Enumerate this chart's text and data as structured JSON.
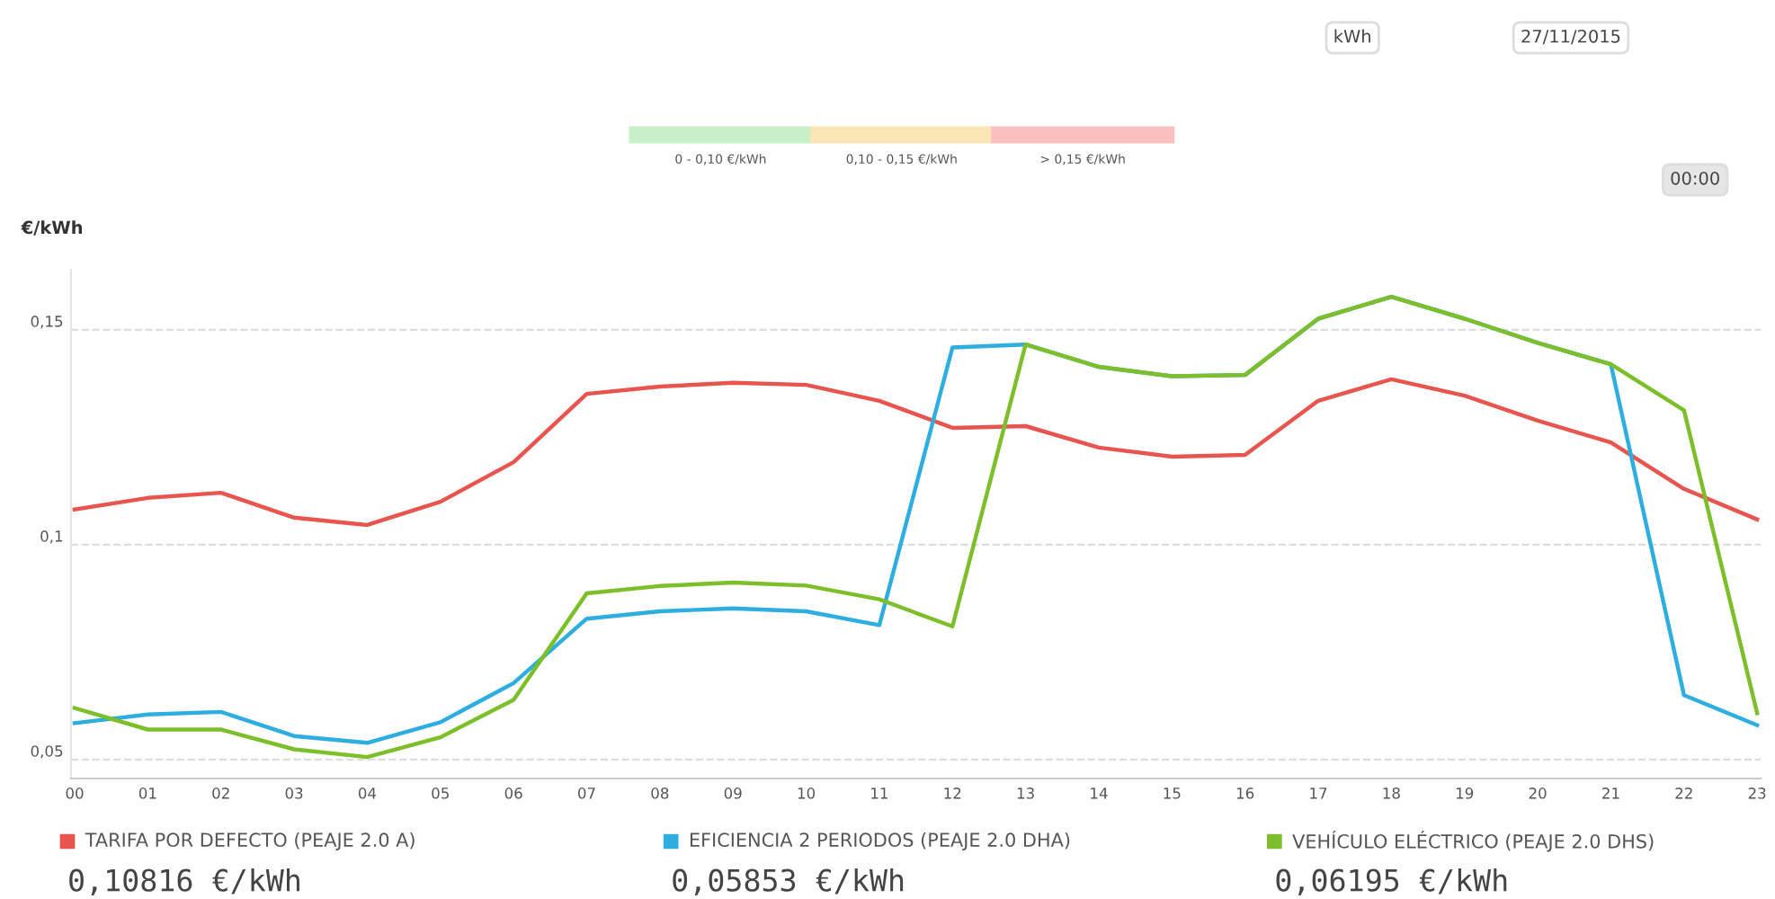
{
  "chart_data": {
    "type": "line",
    "ylabel": "€/kWh",
    "categories": [
      "00",
      "01",
      "02",
      "03",
      "04",
      "05",
      "06",
      "07",
      "08",
      "09",
      "10",
      "11",
      "12",
      "13",
      "14",
      "15",
      "16",
      "17",
      "18",
      "19",
      "20",
      "21",
      "22",
      "23"
    ],
    "series": [
      {
        "name": "TARIFA POR DEFECTO (PEAJE 2.0 A)",
        "color": "#e8554e",
        "values": [
          0.1082,
          0.1109,
          0.1121,
          0.1063,
          0.1046,
          0.11,
          0.1192,
          0.1351,
          0.1368,
          0.1377,
          0.1372,
          0.1335,
          0.1272,
          0.1276,
          0.1226,
          0.1205,
          0.1209,
          0.1335,
          0.1385,
          0.1347,
          0.1289,
          0.1238,
          0.113,
          0.1059
        ]
      },
      {
        "name": "EFICIENCIA 2 PERIODOS (PEAJE 2.0 DHA)",
        "color": "#2eaee0",
        "values": [
          0.0585,
          0.0605,
          0.0611,
          0.0555,
          0.0539,
          0.0587,
          0.0678,
          0.0828,
          0.0845,
          0.0852,
          0.0845,
          0.0813,
          0.1459,
          0.1466,
          0.1414,
          0.1392,
          0.1395,
          0.1526,
          0.1577,
          0.1526,
          0.147,
          0.142,
          0.065,
          0.058
        ]
      },
      {
        "name": "VEHÍCULO ELÉCTRICO (PEAJE 2.0 DHS)",
        "color": "#7cbf2a",
        "values": [
          0.062,
          0.057,
          0.057,
          0.0524,
          0.0506,
          0.0552,
          0.0639,
          0.0887,
          0.0904,
          0.0912,
          0.0905,
          0.0873,
          0.081,
          0.1466,
          0.1414,
          0.1392,
          0.1395,
          0.1526,
          0.1577,
          0.1526,
          0.147,
          0.142,
          0.1313,
          0.0608
        ]
      }
    ],
    "ylim": [
      0.0456,
      0.164
    ],
    "yticks": [
      {
        "value": 0.05,
        "label": "0,05"
      },
      {
        "value": 0.1,
        "label": "0,1"
      },
      {
        "value": 0.15,
        "label": "0,15"
      }
    ],
    "grid": "y",
    "legend": "bottom",
    "marker": "none",
    "line_style": "solid",
    "annotations": [
      "kWh",
      "27/11/2015",
      "00:00",
      "0 - 0,10 €/kWh",
      "0,10 - 0,15 €/kWh",
      "> 0,15 €/kWh",
      "0,10816 €/kWh",
      "0,05853 €/kWh",
      "0,06195 €/kWh"
    ]
  }
}
